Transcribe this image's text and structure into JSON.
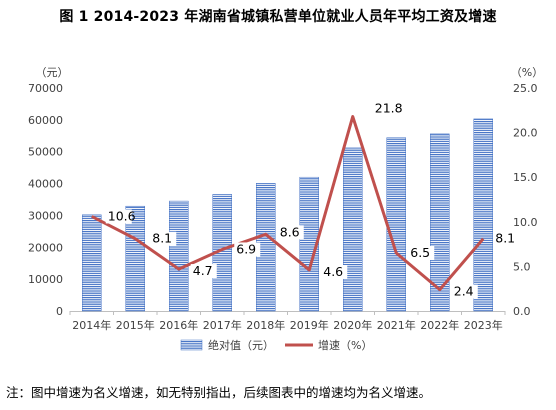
{
  "chart_data": {
    "type": "bar+line",
    "title": "图 1    2014-2023 年湖南省城镇私营单位就业人员年平均工资及增速",
    "categories": [
      "2014年",
      "2015年",
      "2016年",
      "2017年",
      "2018年",
      "2019年",
      "2020年",
      "2021年",
      "2022年",
      "2023年"
    ],
    "series": [
      {
        "name": "绝对值（元）",
        "type": "bar",
        "axis": "left",
        "color": "#4472C4",
        "values": [
          30200,
          32900,
          34500,
          36600,
          40100,
          42000,
          51200,
          54400,
          55600,
          60300
        ]
      },
      {
        "name": "增速（%）",
        "type": "line",
        "axis": "right",
        "color": "#C0504D",
        "values": [
          10.6,
          8.1,
          4.7,
          6.9,
          8.6,
          4.6,
          21.8,
          6.5,
          2.4,
          8.1
        ]
      }
    ],
    "yleft": {
      "label": "（元）",
      "ylim": [
        0,
        70000
      ],
      "ticks": [
        "0",
        "10000",
        "20000",
        "30000",
        "40000",
        "50000",
        "60000",
        "70000"
      ]
    },
    "yright": {
      "label": "（%）",
      "ylim": [
        0,
        25
      ],
      "ticks": [
        "0.0",
        "5.0",
        "10.0",
        "15.0",
        "20.0",
        "25.0"
      ]
    },
    "legend_position": "bottom",
    "grid": false
  },
  "note": "注：图中增速为名义增速，如无特别指出，后续图表中的增速均为名义增速。"
}
